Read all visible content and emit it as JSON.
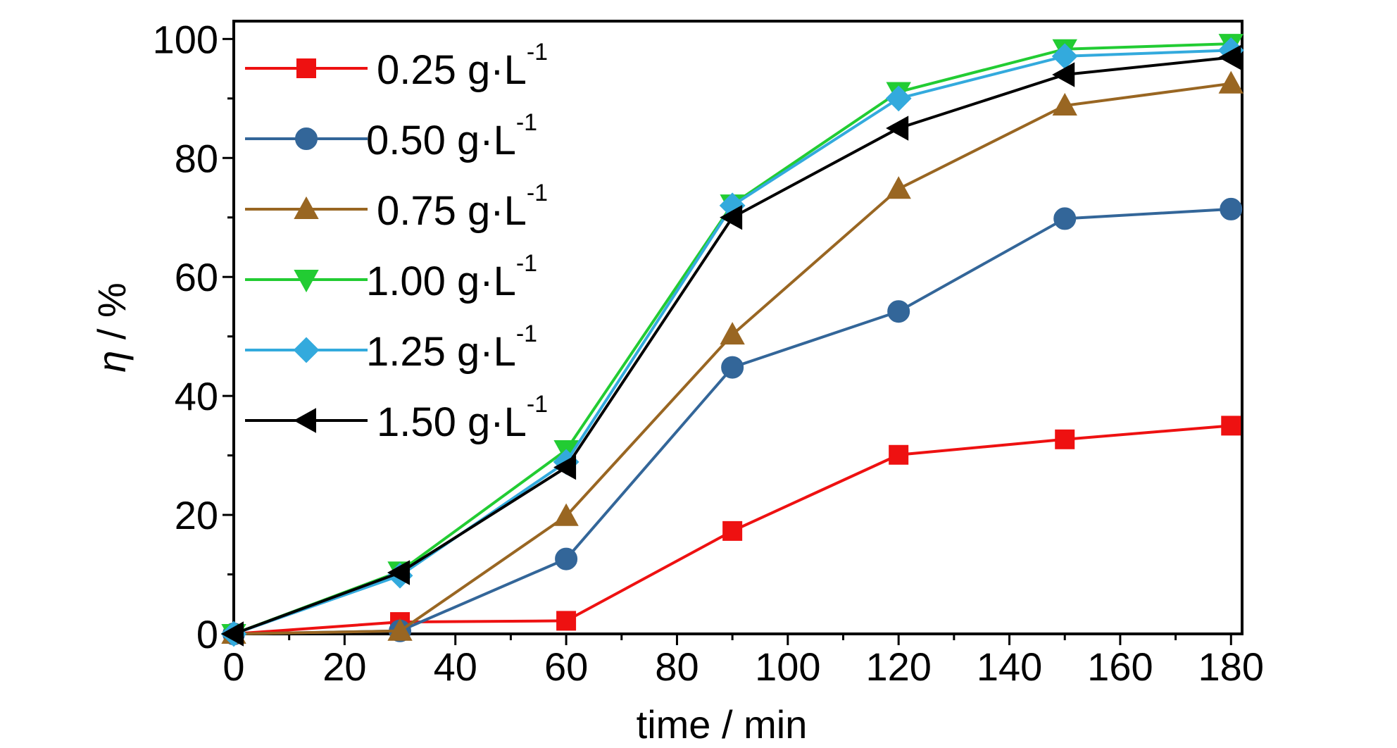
{
  "chart_data": {
    "type": "line",
    "xlabel": "time / min",
    "ylabel_symbol": "η",
    "ylabel_rest": " / %",
    "xlim": [
      0,
      182
    ],
    "ylim": [
      0,
      103
    ],
    "xticks": [
      0,
      20,
      40,
      60,
      80,
      100,
      120,
      140,
      160,
      180
    ],
    "yticks": [
      0,
      20,
      40,
      60,
      80,
      100
    ],
    "legend_position": "top-left",
    "series": [
      {
        "name_main": "0.25 g·L",
        "name_sup": "-1",
        "color": "#ee1111",
        "marker": "square",
        "x": [
          0,
          30,
          60,
          90,
          120,
          150,
          180
        ],
        "y": [
          0,
          2,
          2.2,
          17.3,
          30.1,
          32.7,
          35
        ]
      },
      {
        "name_main": "0.50 g·L",
        "name_sup": "-1",
        "color": "#336699",
        "marker": "circle",
        "x": [
          0,
          30,
          60,
          90,
          120,
          150,
          180
        ],
        "y": [
          0,
          0.5,
          12.6,
          44.8,
          54.2,
          69.8,
          71.4
        ]
      },
      {
        "name_main": "0.75 g·L",
        "name_sup": "-1",
        "color": "#996622",
        "marker": "triangle-up",
        "x": [
          0,
          30,
          60,
          90,
          120,
          150,
          180
        ],
        "y": [
          0,
          0.5,
          19.8,
          50.3,
          74.8,
          88.8,
          92.5
        ]
      },
      {
        "name_main": "1.00 g·L",
        "name_sup": "-1",
        "color": "#22cc33",
        "marker": "triangle-down",
        "x": [
          0,
          30,
          60,
          90,
          120,
          150,
          180
        ],
        "y": [
          0,
          10.5,
          30.9,
          72.2,
          91.1,
          98.3,
          99.2
        ]
      },
      {
        "name_main": "1.25 g·L",
        "name_sup": "-1",
        "color": "#33aadd",
        "marker": "diamond",
        "x": [
          0,
          30,
          60,
          90,
          120,
          150,
          180
        ],
        "y": [
          0,
          9.8,
          28.9,
          72,
          90,
          97.1,
          98.1
        ]
      },
      {
        "name_main": "1.50 g·L",
        "name_sup": "-1",
        "color": "#000000",
        "marker": "triangle-left",
        "x": [
          0,
          30,
          60,
          90,
          120,
          150,
          180
        ],
        "y": [
          0,
          10.3,
          28,
          70,
          85,
          94,
          96.9
        ]
      }
    ]
  }
}
